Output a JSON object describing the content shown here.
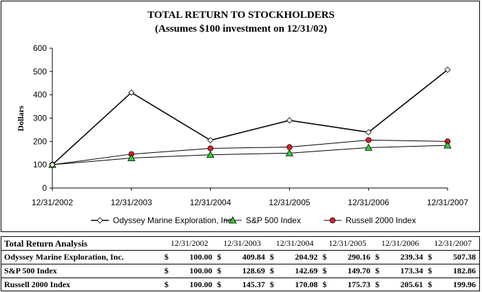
{
  "chart_data": {
    "type": "line",
    "title": "TOTAL RETURN TO STOCKHOLDERS",
    "subtitle": "(Assumes $100 investment on 12/31/02)",
    "ylabel": "Dollars",
    "xlabel": "",
    "ylim": [
      0,
      600
    ],
    "yticks": [
      "0",
      "100",
      "200",
      "300",
      "400",
      "500",
      "600"
    ],
    "categories": [
      "12/31/2002",
      "12/31/2003",
      "12/31/2004",
      "12/31/2005",
      "12/31/2006",
      "12/31/2007"
    ],
    "series": [
      {
        "name": "Odyssey Marine Exploration, Inc.",
        "values": [
          100.0,
          409.84,
          204.92,
          290.16,
          239.34,
          507.38
        ],
        "color": "#000000",
        "marker": "diamond",
        "marker_color": "#ffffff"
      },
      {
        "name": "S&P 500 Index",
        "values": [
          100.0,
          128.69,
          142.69,
          149.7,
          173.34,
          182.86
        ],
        "color": "#000000",
        "marker": "triangle",
        "marker_color": "#33cc33"
      },
      {
        "name": "Russell 2000 Index",
        "values": [
          100.0,
          145.37,
          170.08,
          175.73,
          205.61,
          199.96
        ],
        "color": "#000000",
        "marker": "circle",
        "marker_color": "#e02020"
      }
    ],
    "legend_position": "bottom",
    "grid": false
  },
  "table": {
    "title": "Total Return Analysis",
    "dates": [
      "12/31/2002",
      "12/31/2003",
      "12/31/2004",
      "12/31/2005",
      "12/31/2006",
      "12/31/2007"
    ],
    "currency": "$",
    "rows": [
      {
        "label": "Odyssey Marine Exploration, Inc.",
        "values": [
          "100.00",
          "409.84",
          "204.92",
          "290.16",
          "239.34",
          "507.38"
        ]
      },
      {
        "label": "S&P 500 Index",
        "values": [
          "100.00",
          "128.69",
          "142.69",
          "149.70",
          "173.34",
          "182.86"
        ]
      },
      {
        "label": "Russell 2000 Index",
        "values": [
          "100.00",
          "145.37",
          "170.08",
          "175.73",
          "205.61",
          "199.96"
        ]
      }
    ]
  }
}
